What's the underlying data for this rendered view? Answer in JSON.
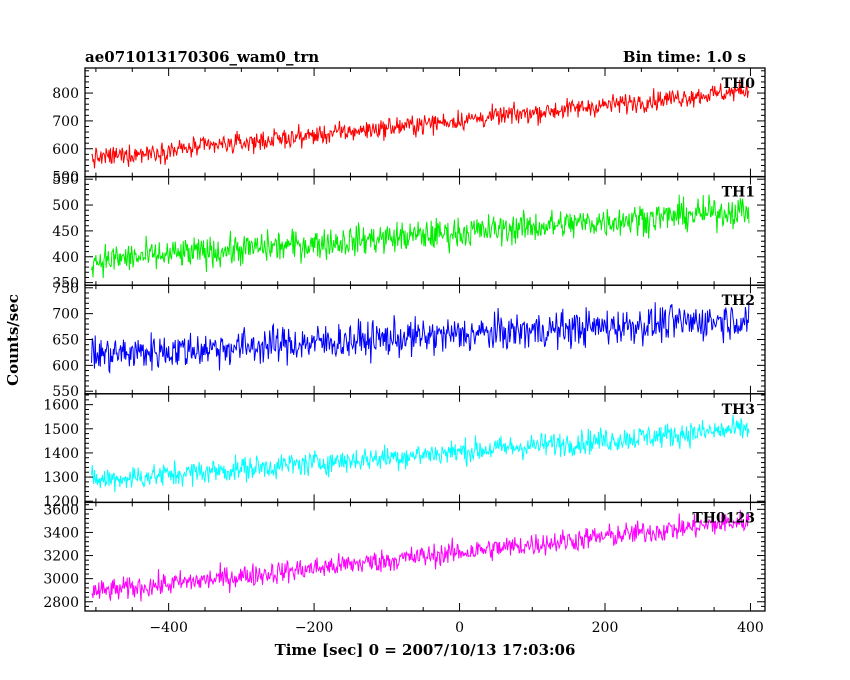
{
  "header": {
    "title": "ae071013170306_wam0_trn",
    "bin_time": "Bin time: 1.0 s"
  },
  "chart_data": {
    "type": "line",
    "xlabel": "Time [sec] 0 = 2007/10/13 17:03:06",
    "ylabel": "Counts/sec",
    "xlim": [
      -515,
      420
    ],
    "x_ticks": [
      -400,
      -200,
      0,
      200,
      400
    ],
    "x_tick_labels": [
      "−400",
      "−200",
      "0",
      "200",
      "400"
    ],
    "x_range": [
      -506,
      398
    ],
    "bin": 1.0,
    "panels": [
      {
        "name": "TH0",
        "color": "#ff0000",
        "ylim": [
          500,
          890
        ],
        "y_ticks": [
          500,
          600,
          700,
          800
        ],
        "y_tick_labels": [
          "500",
          "600",
          "700",
          "800"
        ],
        "trend_start": 565,
        "trend_end": 810,
        "noise": 25
      },
      {
        "name": "TH1",
        "color": "#00ee00",
        "ylim": [
          345,
          555
        ],
        "y_ticks": [
          350,
          400,
          450,
          500,
          550
        ],
        "y_tick_labels": [
          "350",
          "400",
          "450",
          "500",
          "550"
        ],
        "trend_start": 392,
        "trend_end": 490,
        "noise": 21
      },
      {
        "name": "TH2",
        "color": "#0000ff",
        "ylim": [
          545,
          755
        ],
        "y_ticks": [
          550,
          600,
          650,
          700,
          750
        ],
        "y_tick_labels": [
          "550",
          "600",
          "650",
          "700",
          "750"
        ],
        "trend_start": 620,
        "trend_end": 690,
        "noise": 25
      },
      {
        "name": "TH3",
        "color": "#00ffff",
        "ylim": [
          1195,
          1645
        ],
        "y_ticks": [
          1200,
          1300,
          1400,
          1500,
          1600
        ],
        "y_tick_labels": [
          "1200",
          "1300",
          "1400",
          "1500",
          "1600"
        ],
        "trend_start": 1285,
        "trend_end": 1500,
        "noise": 36
      },
      {
        "name": "TH0123",
        "color": "#ff00ff",
        "ylim": [
          2720,
          3660
        ],
        "y_ticks": [
          2800,
          3000,
          3200,
          3400,
          3600
        ],
        "y_tick_labels": [
          "2800",
          "3000",
          "3200",
          "3400",
          "3600"
        ],
        "trend_start": 2880,
        "trend_end": 3500,
        "noise": 70
      }
    ]
  }
}
